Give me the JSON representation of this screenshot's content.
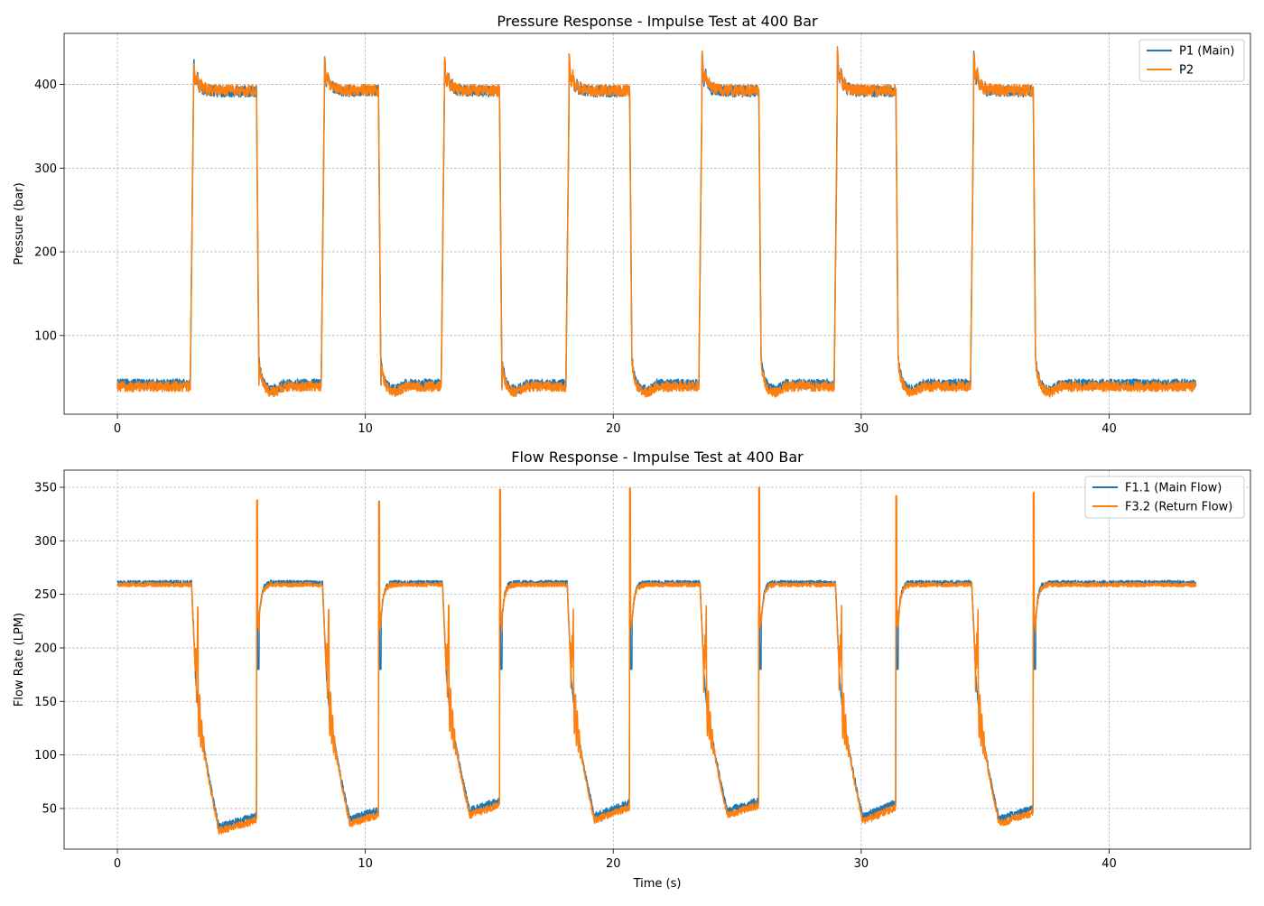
{
  "chart_data": [
    {
      "type": "line",
      "title": "Pressure Response - Impulse Test at 400 Bar",
      "xlabel": "",
      "ylabel": "Pressure (bar)",
      "xlim": [
        -2.15,
        45.7
      ],
      "ylim": [
        6,
        461
      ],
      "xticks": [
        0,
        10,
        20,
        30,
        40
      ],
      "yticks": [
        100,
        200,
        300,
        400
      ],
      "grid": true,
      "legend": "top-right",
      "x_range": [
        0,
        43.5
      ],
      "pulses": [
        [
          2.99,
          5.61
        ],
        [
          8.27,
          10.53
        ],
        [
          13.11,
          15.41
        ],
        [
          18.14,
          20.66
        ],
        [
          23.5,
          25.87
        ],
        [
          28.96,
          31.4
        ],
        [
          34.46,
          36.94
        ]
      ],
      "overshoot_peaks": [
        432,
        434,
        435,
        434,
        438,
        440,
        440
      ],
      "series": [
        {
          "name": "P1 (Main)",
          "color": "#1f77b4",
          "low_level": 42,
          "high_level": 392
        },
        {
          "name": "P2",
          "color": "#ff7f0e",
          "low_level": 39,
          "high_level": 393
        }
      ]
    },
    {
      "type": "line",
      "title": "Flow Response - Impulse Test at 400 Bar",
      "xlabel": "Time (s)",
      "ylabel": "Flow Rate (LPM)",
      "xlim": [
        -2.15,
        45.7
      ],
      "ylim": [
        12,
        366
      ],
      "xticks": [
        0,
        10,
        20,
        30,
        40
      ],
      "yticks": [
        50,
        100,
        150,
        200,
        250,
        300,
        350
      ],
      "grid": true,
      "legend": "top-right",
      "x_range": [
        0,
        43.5
      ],
      "pulses": [
        [
          2.99,
          5.61
        ],
        [
          8.27,
          10.53
        ],
        [
          13.11,
          15.41
        ],
        [
          18.14,
          20.66
        ],
        [
          23.5,
          25.87
        ],
        [
          28.96,
          31.4
        ],
        [
          34.46,
          36.94
        ]
      ],
      "pulse_min": [
        33,
        40,
        48,
        43,
        48,
        42,
        40
      ],
      "pulse_end": [
        43,
        48,
        57,
        55,
        57,
        55,
        50
      ],
      "release_spikes": [
        338,
        337,
        348,
        349,
        350,
        342,
        345
      ],
      "series": [
        {
          "name": "F1.1 (Main Flow)",
          "color": "#1f77b4",
          "baseline": 261
        },
        {
          "name": "F3.2 (Return Flow)",
          "color": "#ff7f0e",
          "baseline": 259
        }
      ]
    }
  ]
}
